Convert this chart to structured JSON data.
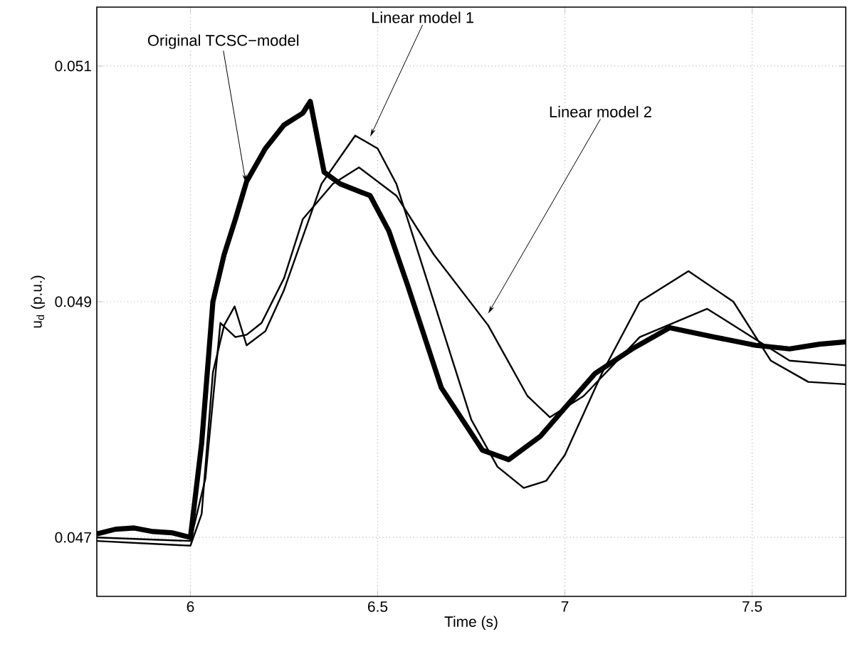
{
  "chart_data": {
    "type": "line",
    "xlabel": "Time (s)",
    "ylabel": "u$_{d}$ (p.u.)",
    "xlim": [
      5.75,
      7.75
    ],
    "ylim": [
      0.0465,
      0.0515
    ],
    "xticks": [
      6,
      6.5,
      7,
      7.5
    ],
    "yticks": [
      0.047,
      0.049,
      0.051
    ],
    "grid": true,
    "line_style": "solid",
    "marker": "none",
    "series": [
      {
        "color": "#000000",
        "x": [
          5.75,
          5.8,
          5.85,
          5.9,
          5.95,
          6.0,
          6.015,
          6.03,
          6.045,
          6.06,
          6.09,
          6.12,
          6.15,
          6.2,
          6.25,
          6.3,
          6.32,
          6.357,
          6.4,
          6.48,
          6.53,
          6.58,
          6.67,
          6.78,
          6.85,
          6.935,
          7.0,
          7.08,
          7.18,
          7.28,
          7.4,
          7.51,
          7.6,
          7.68,
          7.75
        ],
        "values": [
          0.04703,
          0.04707,
          0.04708,
          0.04705,
          0.04704,
          0.047,
          0.0474,
          0.0478,
          0.0484,
          0.049,
          0.0494,
          0.0497,
          0.05002,
          0.0503,
          0.0505,
          0.0506,
          0.0507,
          0.0501,
          0.05,
          0.0499,
          0.0496,
          0.04914,
          0.04827,
          0.04774,
          0.04766,
          0.04786,
          0.0481,
          0.04839,
          0.0486,
          0.04878,
          0.0487,
          0.04863,
          0.0486,
          0.04864,
          0.04866
        ]
      },
      {
        "color": "#000000",
        "x": [
          5.75,
          6.0,
          6.03,
          6.06,
          6.09,
          6.118,
          6.15,
          6.2,
          6.25,
          6.35,
          6.44,
          6.5,
          6.55,
          6.65,
          6.75,
          6.82,
          6.89,
          6.95,
          7.0,
          7.1,
          7.2,
          7.33,
          7.45,
          7.55,
          7.65,
          7.75
        ],
        "values": [
          0.04697,
          0.04693,
          0.0472,
          0.0484,
          0.0488,
          0.04896,
          0.04863,
          0.04875,
          0.0491,
          0.05,
          0.05041,
          0.0503,
          0.05,
          0.049,
          0.048,
          0.0476,
          0.04742,
          0.04748,
          0.0477,
          0.0484,
          0.049,
          0.04926,
          0.049,
          0.0485,
          0.04832,
          0.0483
        ]
      },
      {
        "color": "#000000",
        "x": [
          5.75,
          6.0,
          6.04,
          6.08,
          6.12,
          6.15,
          6.19,
          6.25,
          6.3,
          6.38,
          6.45,
          6.55,
          6.65,
          6.795,
          6.9,
          6.96,
          7.05,
          7.2,
          7.38,
          7.5,
          7.6,
          7.75
        ],
        "values": [
          0.047,
          0.04697,
          0.0475,
          0.04882,
          0.0487,
          0.04872,
          0.04882,
          0.0492,
          0.0497,
          0.05,
          0.05014,
          0.0499,
          0.0494,
          0.0488,
          0.0482,
          0.04802,
          0.0482,
          0.0487,
          0.04894,
          0.0487,
          0.0485,
          0.04846
        ]
      }
    ],
    "annotations": [
      {
        "text": "Original TCSC−model",
        "x": 6.148,
        "y": 0.05001
      },
      {
        "text": "Linear model 1",
        "x": 6.48,
        "y": 0.0504
      },
      {
        "text": "Linear model 2",
        "x": 6.795,
        "y": 0.0489
      }
    ]
  }
}
